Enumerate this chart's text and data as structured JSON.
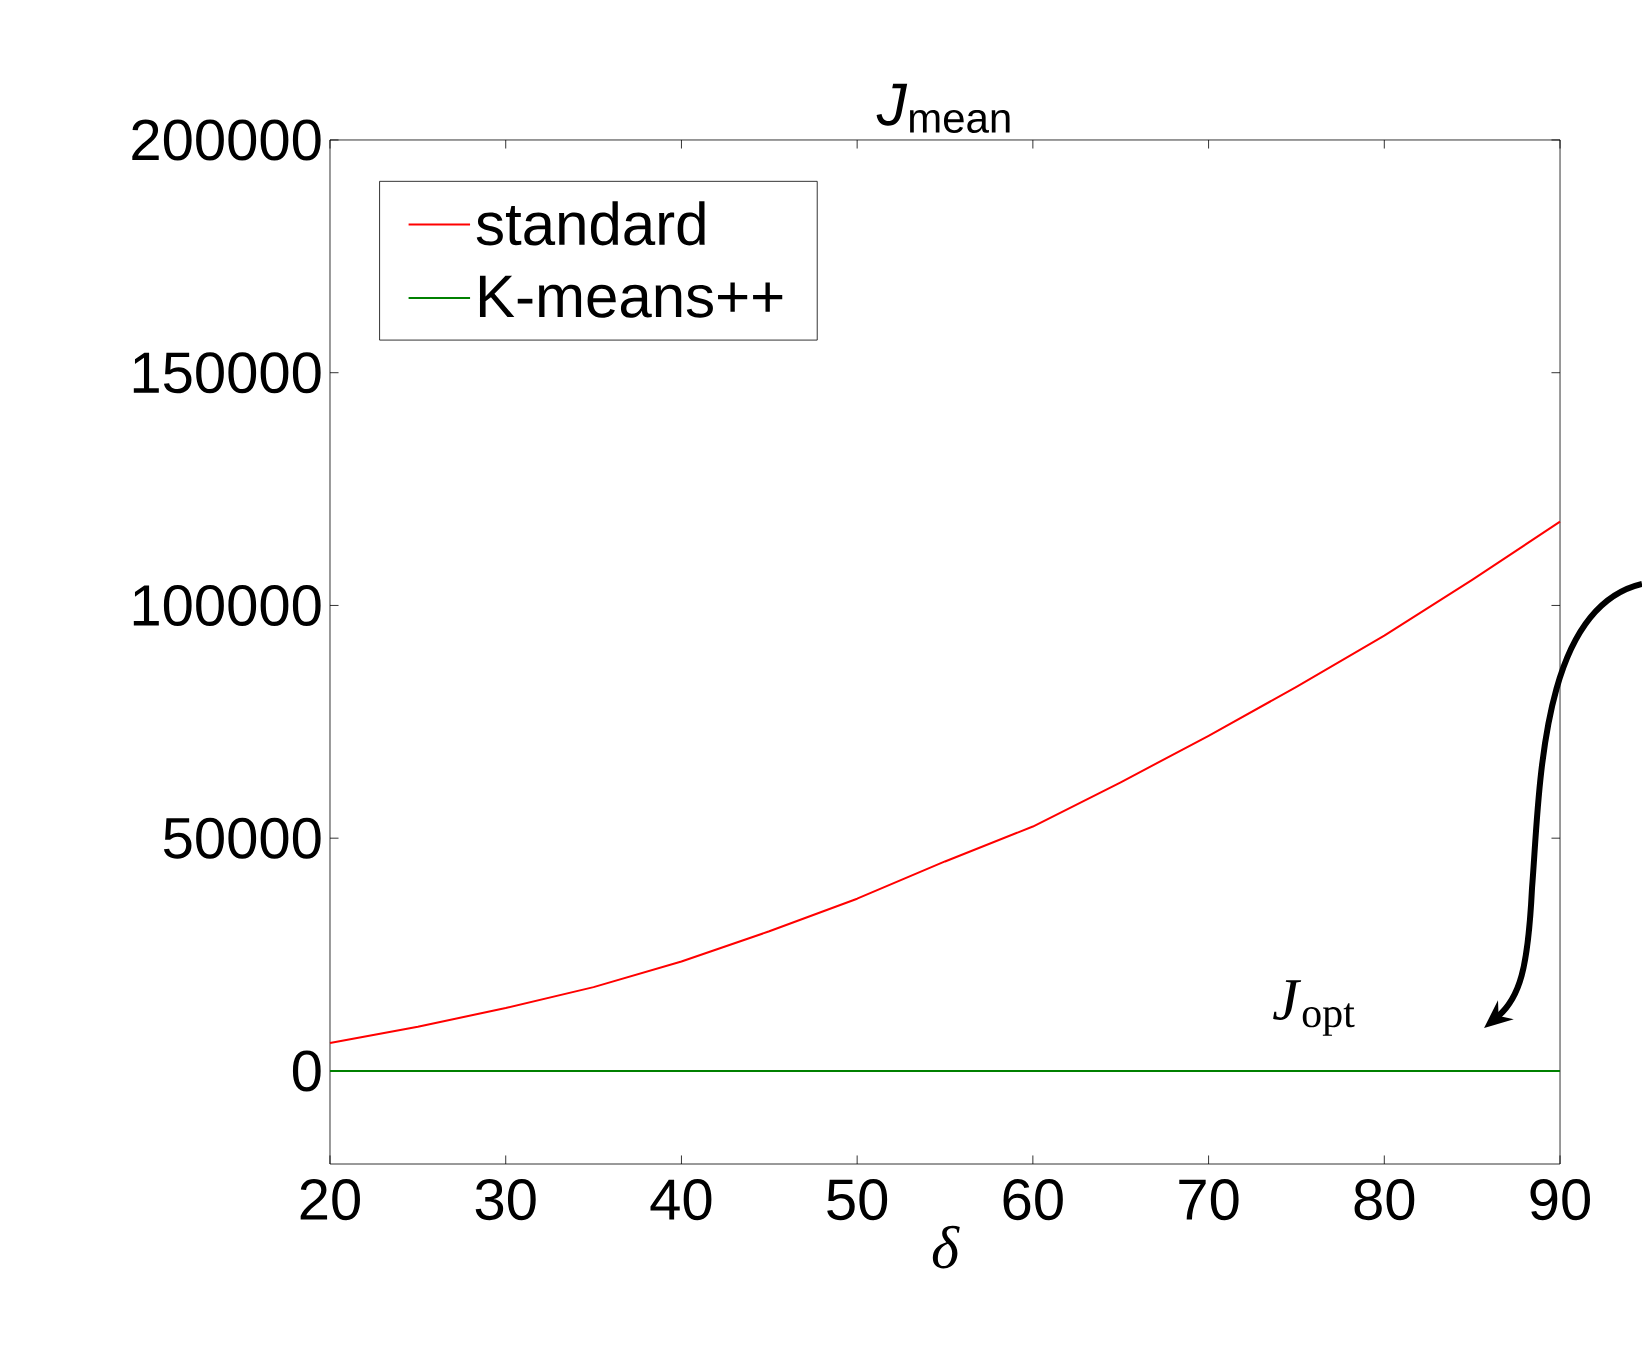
{
  "chart_data": {
    "type": "line",
    "title": "*J*$_{mean}$",
    "xlabel": "δ",
    "x": [
      20,
      25,
      30,
      35,
      40,
      45,
      50,
      55,
      60,
      65,
      70,
      75,
      80,
      85,
      90
    ],
    "series": [
      {
        "name": "standard",
        "color": "#ff0000",
        "values": [
          6000,
          9500,
          13500,
          18000,
          23500,
          30000,
          37000,
          45000,
          52500,
          62000,
          72000,
          82500,
          93500,
          105500,
          118000
        ]
      },
      {
        "name": "K-means++",
        "color": "#008000",
        "values": [
          0,
          0,
          0,
          0,
          0,
          0,
          0,
          0,
          0,
          0,
          0,
          0,
          0,
          0,
          0
        ]
      }
    ],
    "xlim": [
      20,
      90
    ],
    "ylim": [
      -20000,
      200000
    ],
    "xticks": [
      20,
      30,
      40,
      50,
      60,
      70,
      80,
      90
    ],
    "yticks": [
      0,
      50000,
      100000,
      150000,
      200000
    ],
    "annotations": [
      {
        "text": "*J*$_{opt}$",
        "x": 76,
        "y": 0
      }
    ],
    "legend": "top left",
    "grid": false,
    "marker": "none",
    "line_style": "solid"
  }
}
